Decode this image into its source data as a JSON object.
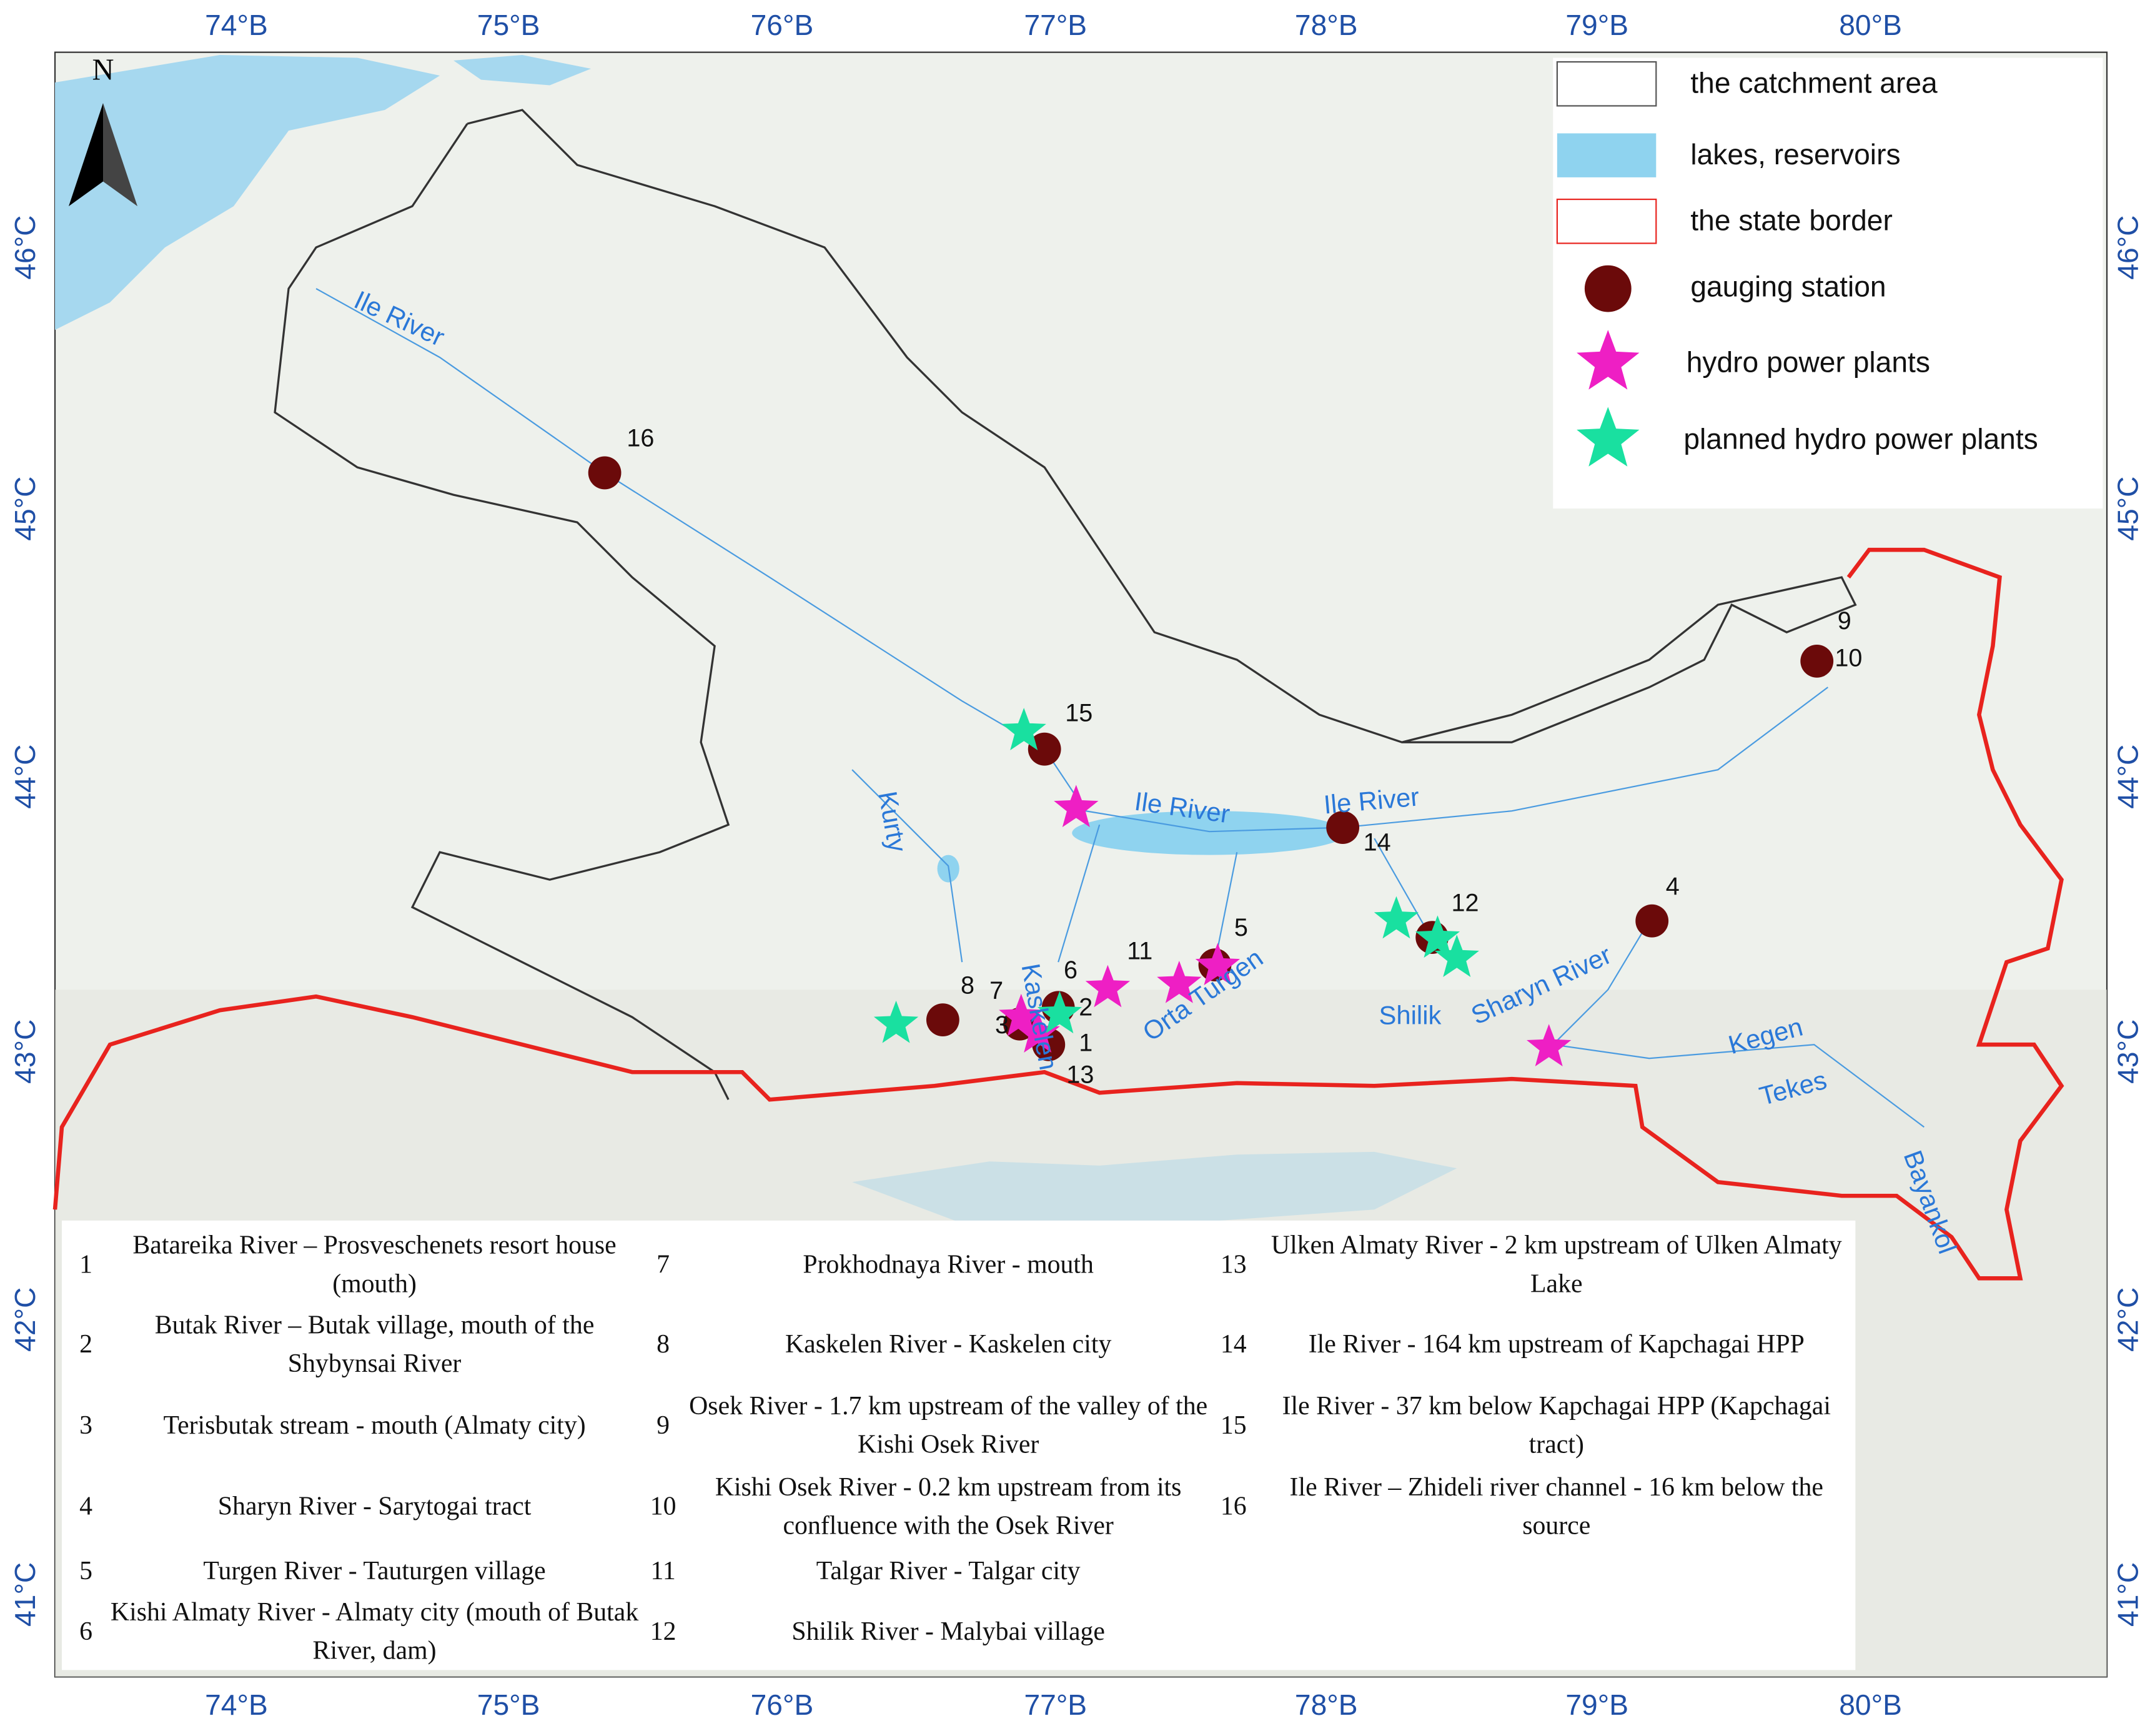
{
  "north_arrow": "N",
  "lon_labels": [
    "74°B",
    "75°B",
    "76°B",
    "77°B",
    "78°B",
    "79°B",
    "80°B"
  ],
  "lat_labels": [
    "46°C",
    "45°C",
    "44°C",
    "43°C",
    "42°C",
    "41°C"
  ],
  "legend": [
    "the catchment area",
    "lakes, reservoirs",
    "the state border",
    "gauging station",
    "hydro power plants",
    "planned hydro power plants"
  ],
  "river_labels": [
    "Ile River",
    "Ile River",
    "Ile River",
    "Kurty",
    "Kaskelen",
    "Orta Turgen",
    "Shilik",
    "Sharyn River",
    "Kegen",
    "Tekes",
    "Bayankol"
  ],
  "station_labels": [
    "16",
    "15",
    "14",
    "12",
    "4",
    "5",
    "6",
    "11",
    "8",
    "7",
    "3",
    "2",
    "1",
    "13",
    "9",
    "10"
  ],
  "table": {
    "rows": [
      [
        "1",
        "Batareika River – Prosveschenets resort house (mouth)"
      ],
      [
        "2",
        "Butak River – Butak village, mouth of the Shybynsai River"
      ],
      [
        "3",
        "Terisbutak stream - mouth (Almaty city)"
      ],
      [
        "4",
        "Sharyn River - Sarytogai tract"
      ],
      [
        "5",
        "Turgen River - Tauturgen village"
      ],
      [
        "6",
        "Kishi Almaty River - Almaty city (mouth of Butak River, dam)"
      ],
      [
        "7",
        "Prokhodnaya River - mouth"
      ],
      [
        "8",
        "Kaskelen River - Kaskelen city"
      ],
      [
        "9",
        "Osek River - 1.7 km upstream of the valley of the Kishi Osek River"
      ],
      [
        "10",
        "Kishi Osek River - 0.2 km upstream from its confluence with the Osek River"
      ],
      [
        "11",
        "Talgar River - Talgar city"
      ],
      [
        "12",
        "Shilik River - Malybai village"
      ],
      [
        "13",
        "Ulken Almaty River - 2 km upstream of Ulken Almaty Lake"
      ],
      [
        "14",
        "Ile River - 164 km upstream of Kapchagai HPP"
      ],
      [
        "15",
        "Ile River - 37 km below Kapchagai HPP (Kapchagai tract)"
      ],
      [
        "16",
        "Ile River – Zhideli river channel - 16 km below the source"
      ]
    ]
  }
}
